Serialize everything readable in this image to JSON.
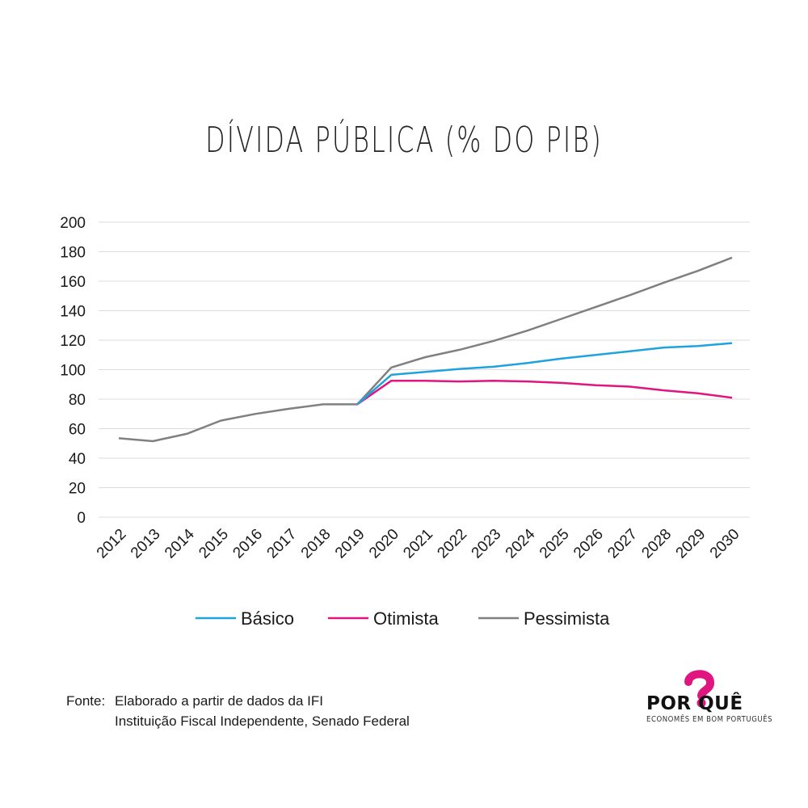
{
  "chart_data": {
    "type": "line",
    "title": "DÍVIDA PÚBLICA (% DO PIB)",
    "xlabel": "",
    "ylabel": "",
    "ylim": [
      0,
      200
    ],
    "yticks": [
      0,
      20,
      40,
      60,
      80,
      100,
      120,
      140,
      160,
      180,
      200
    ],
    "grid": true,
    "legend_position": "bottom",
    "x": [
      "2012",
      "2013",
      "2014",
      "2015",
      "2016",
      "2017",
      "2018",
      "2019",
      "2020",
      "2021",
      "2022",
      "2023",
      "2024",
      "2025",
      "2026",
      "2027",
      "2028",
      "2029",
      "2030"
    ],
    "series": [
      {
        "name": "Básico",
        "color": "#1ea3dc",
        "values": [
          null,
          null,
          null,
          null,
          null,
          null,
          null,
          76.5,
          96.5,
          98.5,
          100.5,
          102,
          104.5,
          107.5,
          110,
          112.5,
          115,
          116,
          118
        ]
      },
      {
        "name": "Otimista",
        "color": "#e0157f",
        "values": [
          null,
          null,
          null,
          null,
          null,
          null,
          null,
          76.5,
          92.5,
          92.5,
          92,
          92.5,
          92,
          91,
          89.5,
          88.5,
          86,
          84,
          81
        ]
      },
      {
        "name": "Pessimista",
        "color": "#808080",
        "values": [
          53.5,
          51.5,
          56.5,
          65.5,
          70,
          73.5,
          76.5,
          76.5,
          101.5,
          108.5,
          113.5,
          119.5,
          126.5,
          134.5,
          142.5,
          150.5,
          159,
          167,
          176
        ]
      }
    ]
  },
  "source": {
    "label": "Fonte:",
    "line1": "Elaborado  a partir de dados da IFI",
    "line2": "Instituição Fiscal Independente, Senado Federal"
  },
  "logo": {
    "name": "POR QUÊ",
    "tagline": "ECONOMÊS EM BOM PORTUGUÊS",
    "icon": "question-mark-piggy-icon",
    "accent": "#e0157f"
  }
}
